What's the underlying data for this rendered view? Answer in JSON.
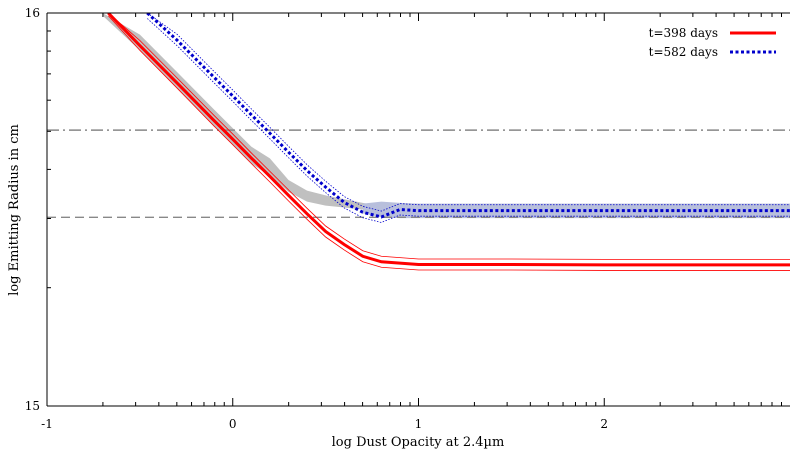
{
  "chart_data": {
    "type": "line",
    "title": "",
    "xlabel": "log Dust Opacity at 2.4µm",
    "ylabel": "log Emitting Radius in cm",
    "xlim": [
      -1,
      3
    ],
    "ylim": [
      15,
      16
    ],
    "x_ticks": [
      "-1",
      "0",
      "1",
      "2"
    ],
    "y_ticks": [
      "15",
      "16"
    ],
    "x_tick_values": [
      -1,
      0,
      1,
      2
    ],
    "y_tick_values": [
      15,
      16
    ],
    "x_minor_ticks": "log",
    "legend_position": "top-right",
    "grid": false,
    "series": [
      {
        "name": "t=398 days",
        "color": "#ff0000",
        "style": "solid",
        "x": [
          -0.67,
          -0.5,
          -0.3,
          -0.1,
          0.0,
          0.1,
          0.2,
          0.3,
          0.4,
          0.5,
          0.6,
          0.7,
          0.8,
          1.0,
          1.5,
          2.0,
          2.5,
          3.0
        ],
        "y": [
          16.0,
          15.917,
          15.822,
          15.726,
          15.679,
          15.631,
          15.584,
          15.536,
          15.489,
          15.444,
          15.411,
          15.381,
          15.367,
          15.36,
          15.36,
          15.359,
          15.359,
          15.359
        ],
        "upper": [
          16.0,
          15.93,
          15.835,
          15.739,
          15.692,
          15.644,
          15.597,
          15.55,
          15.503,
          15.458,
          15.425,
          15.395,
          15.381,
          15.374,
          15.374,
          15.373,
          15.373,
          15.373
        ],
        "lower": [
          15.993,
          15.905,
          15.809,
          15.712,
          15.665,
          15.617,
          15.57,
          15.522,
          15.475,
          15.43,
          15.397,
          15.367,
          15.353,
          15.346,
          15.346,
          15.345,
          15.345,
          15.345
        ]
      },
      {
        "name": "t=582 days",
        "color": "#0000cc",
        "style": "dotted",
        "x": [
          -0.46,
          -0.3,
          -0.1,
          0.0,
          0.1,
          0.2,
          0.3,
          0.4,
          0.5,
          0.6,
          0.7,
          0.8,
          0.9,
          1.0,
          1.5,
          2.0,
          2.5,
          3.0
        ],
        "y": [
          16.0,
          15.931,
          15.836,
          15.789,
          15.741,
          15.694,
          15.646,
          15.599,
          15.557,
          15.518,
          15.493,
          15.481,
          15.5,
          15.497,
          15.497,
          15.497,
          15.497,
          15.497
        ],
        "upper": [
          16.0,
          15.946,
          15.851,
          15.804,
          15.756,
          15.709,
          15.661,
          15.614,
          15.572,
          15.533,
          15.508,
          15.496,
          15.515,
          15.512,
          15.512,
          15.512,
          15.512,
          15.512
        ],
        "lower": [
          15.986,
          15.917,
          15.822,
          15.775,
          15.727,
          15.68,
          15.632,
          15.585,
          15.543,
          15.504,
          15.479,
          15.467,
          15.486,
          15.483,
          15.483,
          15.483,
          15.483,
          15.483
        ]
      }
    ],
    "shaded_regions": [
      {
        "name": "band-398",
        "color": "#c0c0c0",
        "x": [
          -0.7,
          -0.5,
          -0.3,
          -0.1,
          0.0,
          0.1,
          0.2,
          0.3,
          0.4,
          0.5,
          0.6,
          0.7,
          0.8,
          0.9,
          1.0
        ],
        "upper": [
          16.0,
          15.945,
          15.85,
          15.754,
          15.707,
          15.66,
          15.63,
          15.575,
          15.548,
          15.536,
          15.526,
          15.517,
          15.508,
          15.5,
          15.5
        ],
        "lower": [
          15.993,
          15.905,
          15.809,
          15.712,
          15.665,
          15.617,
          15.585,
          15.545,
          15.52,
          15.51,
          15.505,
          15.5,
          15.495,
          15.49,
          15.5
        ]
      },
      {
        "name": "band-582",
        "color": "#b8bfdc",
        "x": [
          0.7,
          0.8,
          0.9,
          1.0,
          1.5,
          2.0,
          2.5,
          3.0
        ],
        "upper": [
          15.515,
          15.52,
          15.517,
          15.515,
          15.515,
          15.515,
          15.515,
          15.515
        ],
        "lower": [
          15.49,
          15.48,
          15.478,
          15.478,
          15.478,
          15.478,
          15.478,
          15.478
        ]
      }
    ],
    "hlines": [
      {
        "y": 15.702,
        "style": "dash-dot",
        "color": "#888888"
      },
      {
        "y": 15.48,
        "style": "dashed",
        "color": "#888888"
      }
    ]
  }
}
